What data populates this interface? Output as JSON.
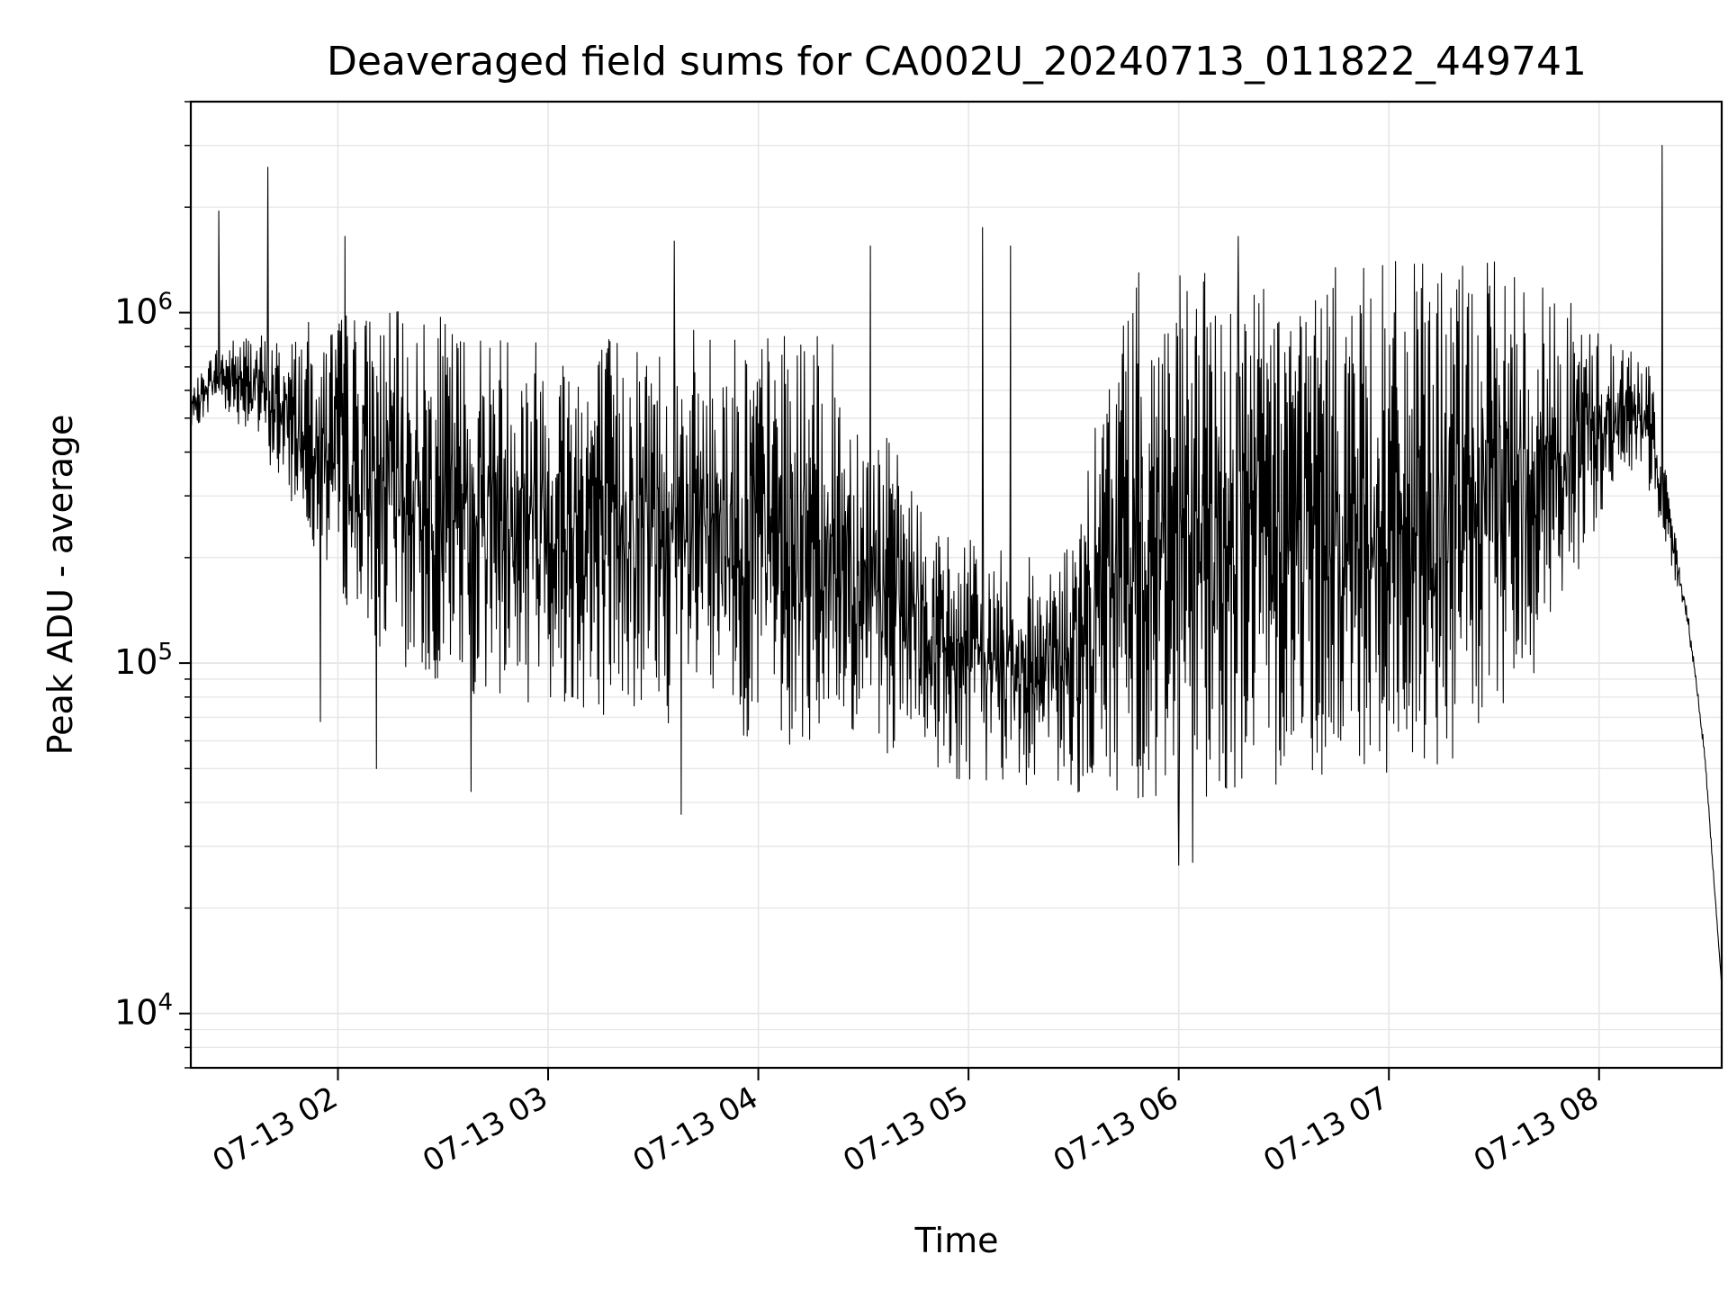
{
  "chart_data": {
    "type": "line",
    "title": "Deaveraged field sums for CA002U_20240713_011822_449741",
    "xlabel": "Time",
    "ylabel": "Peak ADU - average",
    "yscale": "log",
    "ylim": [
      7000,
      4000000
    ],
    "xlim": [
      "2024-07-13 01:18",
      "2024-07-13 08:35"
    ],
    "grid": true,
    "line_color": "#000000",
    "grid_color": "#e6e6e6",
    "x_ticks": [
      {
        "t": "2024-07-13 02:00",
        "label": "07-13 02"
      },
      {
        "t": "2024-07-13 03:00",
        "label": "07-13 03"
      },
      {
        "t": "2024-07-13 04:00",
        "label": "07-13 04"
      },
      {
        "t": "2024-07-13 05:00",
        "label": "07-13 05"
      },
      {
        "t": "2024-07-13 06:00",
        "label": "07-13 06"
      },
      {
        "t": "2024-07-13 07:00",
        "label": "07-13 07"
      },
      {
        "t": "2024-07-13 08:00",
        "label": "07-13 08"
      }
    ],
    "y_ticks": [
      {
        "value": 10000,
        "base": "10",
        "exp": "4"
      },
      {
        "value": 100000,
        "base": "10",
        "exp": "5"
      },
      {
        "value": 1000000,
        "base": "10",
        "exp": "6"
      }
    ],
    "envelope": {
      "x": [
        "2024-07-13 01:18",
        "2024-07-13 01:25",
        "2024-07-13 01:35",
        "2024-07-13 01:45",
        "2024-07-13 01:55",
        "2024-07-13 02:05",
        "2024-07-13 02:20",
        "2024-07-13 02:40",
        "2024-07-13 03:00",
        "2024-07-13 03:20",
        "2024-07-13 03:40",
        "2024-07-13 04:00",
        "2024-07-13 04:20",
        "2024-07-13 04:40",
        "2024-07-13 04:50",
        "2024-07-13 05:00",
        "2024-07-13 05:15",
        "2024-07-13 05:30",
        "2024-07-13 05:45",
        "2024-07-13 06:00",
        "2024-07-13 06:10",
        "2024-07-13 06:20",
        "2024-07-13 06:40",
        "2024-07-13 07:00",
        "2024-07-13 07:20",
        "2024-07-13 07:40",
        "2024-07-13 08:00",
        "2024-07-13 08:10",
        "2024-07-13 08:15",
        "2024-07-13 08:20",
        "2024-07-13 08:25",
        "2024-07-13 08:30",
        "2024-07-13 08:35"
      ],
      "high": [
        600000,
        800000,
        900000,
        850000,
        1000000,
        1050000,
        1000000,
        950000,
        900000,
        900000,
        900000,
        900000,
        850000,
        400000,
        250000,
        230000,
        200000,
        230000,
        1300000,
        1300000,
        1300000,
        1300000,
        1350000,
        1400000,
        1400000,
        1400000,
        900000,
        800000,
        700000,
        300000,
        150000,
        60000,
        12000
      ],
      "low": [
        450000,
        550000,
        450000,
        300000,
        200000,
        130000,
        90000,
        80000,
        75000,
        70000,
        65000,
        60000,
        55000,
        55000,
        50000,
        45000,
        45000,
        42000,
        40000,
        38000,
        42000,
        45000,
        45000,
        45000,
        50000,
        80000,
        250000,
        350000,
        300000,
        200000,
        130000,
        55000,
        12000
      ]
    },
    "spikes_high": [
      {
        "t": "2024-07-13 01:26",
        "value": 1950000
      },
      {
        "t": "2024-07-13 01:40",
        "value": 2600000
      },
      {
        "t": "2024-07-13 02:02",
        "value": 1650000
      },
      {
        "t": "2024-07-13 03:36",
        "value": 1600000
      },
      {
        "t": "2024-07-13 04:32",
        "value": 1550000
      },
      {
        "t": "2024-07-13 05:04",
        "value": 1750000
      },
      {
        "t": "2024-07-13 05:12",
        "value": 1550000
      },
      {
        "t": "2024-07-13 06:17",
        "value": 1650000
      },
      {
        "t": "2024-07-13 08:18",
        "value": 3000000
      }
    ],
    "spikes_low": [
      {
        "t": "2024-07-13 01:55",
        "value": 68000
      },
      {
        "t": "2024-07-13 02:11",
        "value": 50000
      },
      {
        "t": "2024-07-13 02:38",
        "value": 43000
      },
      {
        "t": "2024-07-13 03:38",
        "value": 37000
      },
      {
        "t": "2024-07-13 06:00",
        "value": 26500
      },
      {
        "t": "2024-07-13 06:04",
        "value": 27000
      }
    ]
  }
}
